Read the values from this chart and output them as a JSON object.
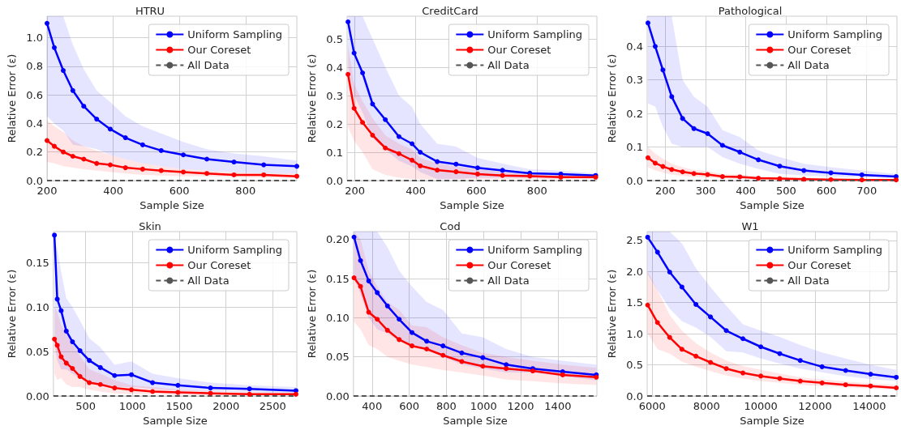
{
  "chart_data": [
    {
      "type": "line",
      "title": "HTRU",
      "xlabel": "Sample Size",
      "ylabel": "Relative Error (ε)",
      "xlim": [
        200,
        955
      ],
      "ylim": [
        0,
        1.15
      ],
      "xticks": [
        200,
        400,
        600,
        800
      ],
      "yticks": [
        {
          "value": 0,
          "label": "0.0"
        },
        0.2,
        0.4,
        0.6,
        0.8,
        {
          "value": 1,
          "label": "1.0"
        }
      ],
      "grid": true,
      "legend": "top right",
      "marker": "circle",
      "x": [
        200,
        222,
        249,
        278,
        311,
        350,
        391,
        437,
        489,
        545,
        612,
        683,
        765,
        855,
        955
      ],
      "series": [
        {
          "name": "Uniform Sampling",
          "color": "#0000ff",
          "values": [
            1.1,
            0.93,
            0.77,
            0.63,
            0.52,
            0.43,
            0.36,
            0.3,
            0.25,
            0.21,
            0.18,
            0.15,
            0.13,
            0.11,
            0.1
          ],
          "lower": [
            0.45,
            0.4,
            0.35,
            0.25,
            0.24,
            0.22,
            0.18,
            0.15,
            0.12,
            0.1,
            0.08,
            0.07,
            0.06,
            0.05,
            0.05
          ],
          "upper": [
            1.15,
            1.15,
            1.15,
            0.95,
            0.78,
            0.63,
            0.55,
            0.45,
            0.38,
            0.33,
            0.27,
            0.22,
            0.19,
            0.17,
            0.14
          ]
        },
        {
          "name": "Our Coreset",
          "color": "#ff0000",
          "values": [
            0.28,
            0.24,
            0.2,
            0.17,
            0.15,
            0.12,
            0.11,
            0.09,
            0.08,
            0.07,
            0.06,
            0.05,
            0.04,
            0.04,
            0.03
          ],
          "lower": [
            0.13,
            0.12,
            0.1,
            0.09,
            0.08,
            0.07,
            0.06,
            0.05,
            0.04,
            0.035,
            0.03,
            0.03,
            0.025,
            0.02,
            0.02
          ],
          "upper": [
            0.42,
            0.38,
            0.34,
            0.28,
            0.24,
            0.21,
            0.18,
            0.15,
            0.12,
            0.1,
            0.08,
            0.07,
            0.06,
            0.05,
            0.05
          ]
        },
        {
          "name": "All Data",
          "color": "#555555",
          "x": [
            200,
            955
          ],
          "values": [
            0,
            0
          ],
          "line_style": "dashed",
          "marker": "none"
        }
      ]
    },
    {
      "type": "line",
      "title": "CreditCard",
      "xlabel": "Sample Size",
      "ylabel": "Relative Error (ε)",
      "xlim": [
        174,
        997
      ],
      "ylim": [
        0,
        0.58
      ],
      "xticks": [
        200,
        400,
        600,
        800
      ],
      "yticks": [
        {
          "value": 0,
          "label": "0.0"
        },
        0.1,
        0.2,
        0.3,
        0.4,
        0.5
      ],
      "grid": true,
      "legend": "top right",
      "marker": "circle",
      "x": [
        177,
        197,
        225,
        258,
        300,
        345,
        388,
        415,
        471,
        533,
        604,
        686,
        776,
        878,
        993
      ],
      "series": [
        {
          "name": "Uniform Sampling",
          "color": "#0000ff",
          "values": [
            0.56,
            0.45,
            0.38,
            0.27,
            0.215,
            0.155,
            0.13,
            0.1,
            0.067,
            0.058,
            0.045,
            0.036,
            0.026,
            0.023,
            0.018
          ],
          "lower": [
            0.4,
            0.3,
            0.24,
            0.15,
            0.11,
            0.07,
            0.05,
            0.03,
            0.005,
            0.005,
            0.01,
            0.01,
            0.01,
            0.01,
            0.008
          ],
          "upper": [
            0.58,
            0.58,
            0.58,
            0.5,
            0.4,
            0.3,
            0.26,
            0.2,
            0.13,
            0.12,
            0.08,
            0.06,
            0.04,
            0.035,
            0.025
          ]
        },
        {
          "name": "Our Coreset",
          "color": "#ff0000",
          "values": [
            0.375,
            0.255,
            0.205,
            0.16,
            0.115,
            0.095,
            0.072,
            0.052,
            0.037,
            0.031,
            0.023,
            0.018,
            0.016,
            0.012,
            0.012
          ],
          "lower": [
            0.19,
            0.14,
            0.1,
            0.04,
            0.02,
            0.01,
            0.005,
            0.005,
            0.005,
            0.005,
            0.005,
            0.005,
            0.005,
            0.005,
            0.005
          ],
          "upper": [
            0.48,
            0.34,
            0.28,
            0.22,
            0.16,
            0.13,
            0.11,
            0.08,
            0.06,
            0.05,
            0.04,
            0.03,
            0.025,
            0.02,
            0.02
          ]
        },
        {
          "name": "All Data",
          "color": "#555555",
          "x": [
            174,
            997
          ],
          "values": [
            0,
            0
          ],
          "line_style": "dashed",
          "marker": "none"
        }
      ]
    },
    {
      "type": "line",
      "title": "Pathological",
      "xlabel": "Sample Size",
      "ylabel": "Relative Error (ε)",
      "xlim": [
        155,
        775
      ],
      "ylim": [
        0,
        0.49
      ],
      "xticks": [
        200,
        300,
        400,
        500,
        600,
        700
      ],
      "yticks": [
        {
          "value": 0,
          "label": "0.0"
        },
        0.1,
        0.2,
        0.3,
        0.4
      ],
      "grid": true,
      "legend": "top right",
      "marker": "circle",
      "x": [
        157,
        175,
        194,
        216,
        243,
        271,
        305,
        342,
        385,
        431,
        484,
        544,
        611,
        688,
        773
      ],
      "series": [
        {
          "name": "Uniform Sampling",
          "color": "#0000ff",
          "values": [
            0.47,
            0.4,
            0.33,
            0.25,
            0.185,
            0.155,
            0.14,
            0.105,
            0.085,
            0.062,
            0.043,
            0.03,
            0.023,
            0.017,
            0.012
          ],
          "lower": [
            0.23,
            0.22,
            0.16,
            0.11,
            0.1,
            0.1,
            0.1,
            0.07,
            0.05,
            0.035,
            0.02,
            0.015,
            0.012,
            0.01,
            0.008
          ],
          "upper": [
            0.49,
            0.49,
            0.49,
            0.49,
            0.3,
            0.25,
            0.22,
            0.15,
            0.13,
            0.09,
            0.07,
            0.05,
            0.04,
            0.03,
            0.02
          ]
        },
        {
          "name": "Our Coreset",
          "color": "#ff0000",
          "values": [
            0.068,
            0.052,
            0.042,
            0.033,
            0.026,
            0.021,
            0.018,
            0.012,
            0.011,
            0.007,
            0.006,
            0.004,
            0.003,
            0.002,
            0.002
          ],
          "lower": [
            0.04,
            0.03,
            0.024,
            0.018,
            0.014,
            0.011,
            0.009,
            0.006,
            0.005,
            0.003,
            0.002,
            0.001,
            0.001,
            0.001,
            0.001
          ],
          "upper": [
            0.1,
            0.08,
            0.065,
            0.05,
            0.04,
            0.032,
            0.028,
            0.02,
            0.018,
            0.012,
            0.01,
            0.008,
            0.006,
            0.005,
            0.004
          ]
        },
        {
          "name": "All Data",
          "color": "#555555",
          "x": [
            155,
            775
          ],
          "values": [
            0,
            0
          ],
          "line_style": "dashed",
          "marker": "none"
        }
      ]
    },
    {
      "type": "line",
      "title": "Skin",
      "xlabel": "Sample Size",
      "ylabel": "Relative Error (ε)",
      "xlim": [
        155,
        2757
      ],
      "ylim": [
        0,
        0.185
      ],
      "xticks": [
        500,
        1000,
        1500,
        2000,
        2500
      ],
      "yticks": [
        {
          "value": 0,
          "label": "0.00"
        },
        0.05,
        {
          "value": 0.1,
          "label": "0.10"
        },
        0.15
      ],
      "grid": true,
      "legend": "top right",
      "marker": "circle",
      "x": [
        166,
        196,
        238,
        293,
        359,
        439,
        539,
        657,
        809,
        989,
        1215,
        1486,
        1834,
        2251,
        2748
      ],
      "series": [
        {
          "name": "Uniform Sampling",
          "color": "#0000ff",
          "values": [
            0.181,
            0.109,
            0.096,
            0.073,
            0.061,
            0.051,
            0.04,
            0.032,
            0.023,
            0.024,
            0.015,
            0.012,
            0.009,
            0.008,
            0.006
          ],
          "lower": [
            0.06,
            0.04,
            0.03,
            0.03,
            0.025,
            0.02,
            0.015,
            0.012,
            0.01,
            0.01,
            0.008,
            0.006,
            0.005,
            0.004,
            0.003
          ],
          "upper": [
            0.175,
            0.165,
            0.14,
            0.11,
            0.1,
            0.085,
            0.065,
            0.055,
            0.035,
            0.039,
            0.025,
            0.02,
            0.015,
            0.012,
            0.01
          ]
        },
        {
          "name": "Our Coreset",
          "color": "#ff0000",
          "values": [
            0.064,
            0.057,
            0.044,
            0.037,
            0.031,
            0.022,
            0.015,
            0.013,
            0.009,
            0.007,
            0.005,
            0.004,
            0.003,
            0.002,
            0.002
          ],
          "lower": [
            0.025,
            0.018,
            0.02,
            0.013,
            0.01,
            0.01,
            0.007,
            0.005,
            0.003,
            0.002,
            0.002,
            0.001,
            0.001,
            0.001,
            0.001
          ],
          "upper": [
            0.1,
            0.095,
            0.08,
            0.07,
            0.06,
            0.045,
            0.03,
            0.025,
            0.018,
            0.012,
            0.01,
            0.007,
            0.005,
            0.004,
            0.003
          ]
        },
        {
          "name": "All Data",
          "color": "#555555",
          "x": [
            155,
            2757
          ],
          "values": [
            0,
            0
          ],
          "line_style": "dashed",
          "marker": "none"
        }
      ]
    },
    {
      "type": "line",
      "title": "Cod",
      "xlabel": "Sample Size",
      "ylabel": "Relative Error (ε)",
      "xlim": [
        300,
        1610
      ],
      "ylim": [
        0,
        0.21
      ],
      "xticks": [
        400,
        600,
        800,
        1000,
        1200,
        1400
      ],
      "yticks": [
        {
          "value": 0,
          "label": "0.00"
        },
        0.05,
        {
          "value": 0.1,
          "label": "0.10"
        },
        0.15,
        {
          "value": 0.2,
          "label": "0.20"
        }
      ],
      "grid": true,
      "legend": "top right",
      "marker": "circle",
      "x": [
        303,
        338,
        382,
        428,
        483,
        546,
        615,
        694,
        782,
        883,
        996,
        1122,
        1265,
        1426,
        1607
      ],
      "series": [
        {
          "name": "Uniform Sampling",
          "color": "#0000ff",
          "values": [
            0.203,
            0.173,
            0.147,
            0.132,
            0.115,
            0.098,
            0.081,
            0.07,
            0.064,
            0.055,
            0.049,
            0.04,
            0.035,
            0.031,
            0.027
          ],
          "lower": [
            0.15,
            0.13,
            0.1,
            0.085,
            0.08,
            0.07,
            0.065,
            0.06,
            0.05,
            0.04,
            0.035,
            0.03,
            0.03,
            0.025,
            0.02
          ],
          "upper": [
            0.21,
            0.21,
            0.21,
            0.21,
            0.19,
            0.16,
            0.14,
            0.12,
            0.11,
            0.08,
            0.075,
            0.06,
            0.05,
            0.045,
            0.04
          ]
        },
        {
          "name": "Our Coreset",
          "color": "#ff0000",
          "values": [
            0.151,
            0.14,
            0.107,
            0.098,
            0.084,
            0.072,
            0.064,
            0.06,
            0.052,
            0.044,
            0.038,
            0.035,
            0.032,
            0.027,
            0.024
          ],
          "lower": [
            0.095,
            0.085,
            0.065,
            0.06,
            0.05,
            0.045,
            0.04,
            0.037,
            0.033,
            0.03,
            0.026,
            0.021,
            0.019,
            0.016,
            0.014
          ],
          "upper": [
            0.21,
            0.2,
            0.16,
            0.14,
            0.12,
            0.11,
            0.09,
            0.088,
            0.075,
            0.065,
            0.055,
            0.05,
            0.045,
            0.04,
            0.036
          ]
        },
        {
          "name": "All Data",
          "color": "#555555",
          "x": [
            300,
            1610
          ],
          "values": [
            0,
            0
          ],
          "line_style": "dashed",
          "marker": "none"
        }
      ]
    },
    {
      "type": "line",
      "title": "W1",
      "xlabel": "Sample Size",
      "ylabel": "Relative Error (ε)",
      "xlim": [
        5810,
        15020
      ],
      "ylim": [
        0,
        2.64
      ],
      "xticks": [
        6000,
        8000,
        10000,
        12000,
        14000
      ],
      "yticks": [
        {
          "value": 0,
          "label": "0.0"
        },
        0.5,
        {
          "value": 1,
          "label": "1.0"
        },
        1.5,
        {
          "value": 2,
          "label": "2.0"
        },
        2.5
      ],
      "grid": true,
      "legend": "top right",
      "marker": "circle",
      "x": [
        5828,
        6191,
        6641,
        7091,
        7608,
        8144,
        8727,
        9340,
        10000,
        10699,
        11455,
        12258,
        13129,
        14048,
        14995
      ],
      "series": [
        {
          "name": "Uniform Sampling",
          "color": "#0000ff",
          "values": [
            2.55,
            2.31,
            1.99,
            1.75,
            1.47,
            1.27,
            1.05,
            0.92,
            0.79,
            0.68,
            0.57,
            0.47,
            0.41,
            0.35,
            0.3
          ],
          "lower": [
            1.95,
            1.7,
            1.4,
            1.2,
            1.1,
            0.95,
            0.72,
            0.7,
            0.6,
            0.52,
            0.44,
            0.38,
            0.32,
            0.27,
            0.24
          ],
          "upper": [
            2.64,
            2.64,
            2.64,
            2.45,
            2.05,
            1.75,
            1.45,
            1.15,
            1.05,
            0.95,
            0.82,
            0.7,
            0.6,
            0.5,
            0.42
          ]
        },
        {
          "name": "Our Coreset",
          "color": "#ff0000",
          "values": [
            1.46,
            1.18,
            0.94,
            0.75,
            0.64,
            0.54,
            0.44,
            0.37,
            0.32,
            0.28,
            0.24,
            0.21,
            0.18,
            0.16,
            0.13
          ],
          "lower": [
            1.0,
            0.75,
            0.68,
            0.55,
            0.47,
            0.4,
            0.33,
            0.28,
            0.24,
            0.21,
            0.18,
            0.16,
            0.14,
            0.12,
            0.1
          ],
          "upper": [
            2.0,
            1.7,
            1.3,
            1.05,
            0.85,
            0.7,
            0.57,
            0.48,
            0.42,
            0.36,
            0.3,
            0.27,
            0.23,
            0.2,
            0.18
          ]
        },
        {
          "name": "All Data",
          "color": "#555555",
          "x": [
            5810,
            15020
          ],
          "values": [
            0,
            0
          ],
          "line_style": "dashed",
          "marker": "none"
        }
      ]
    }
  ]
}
